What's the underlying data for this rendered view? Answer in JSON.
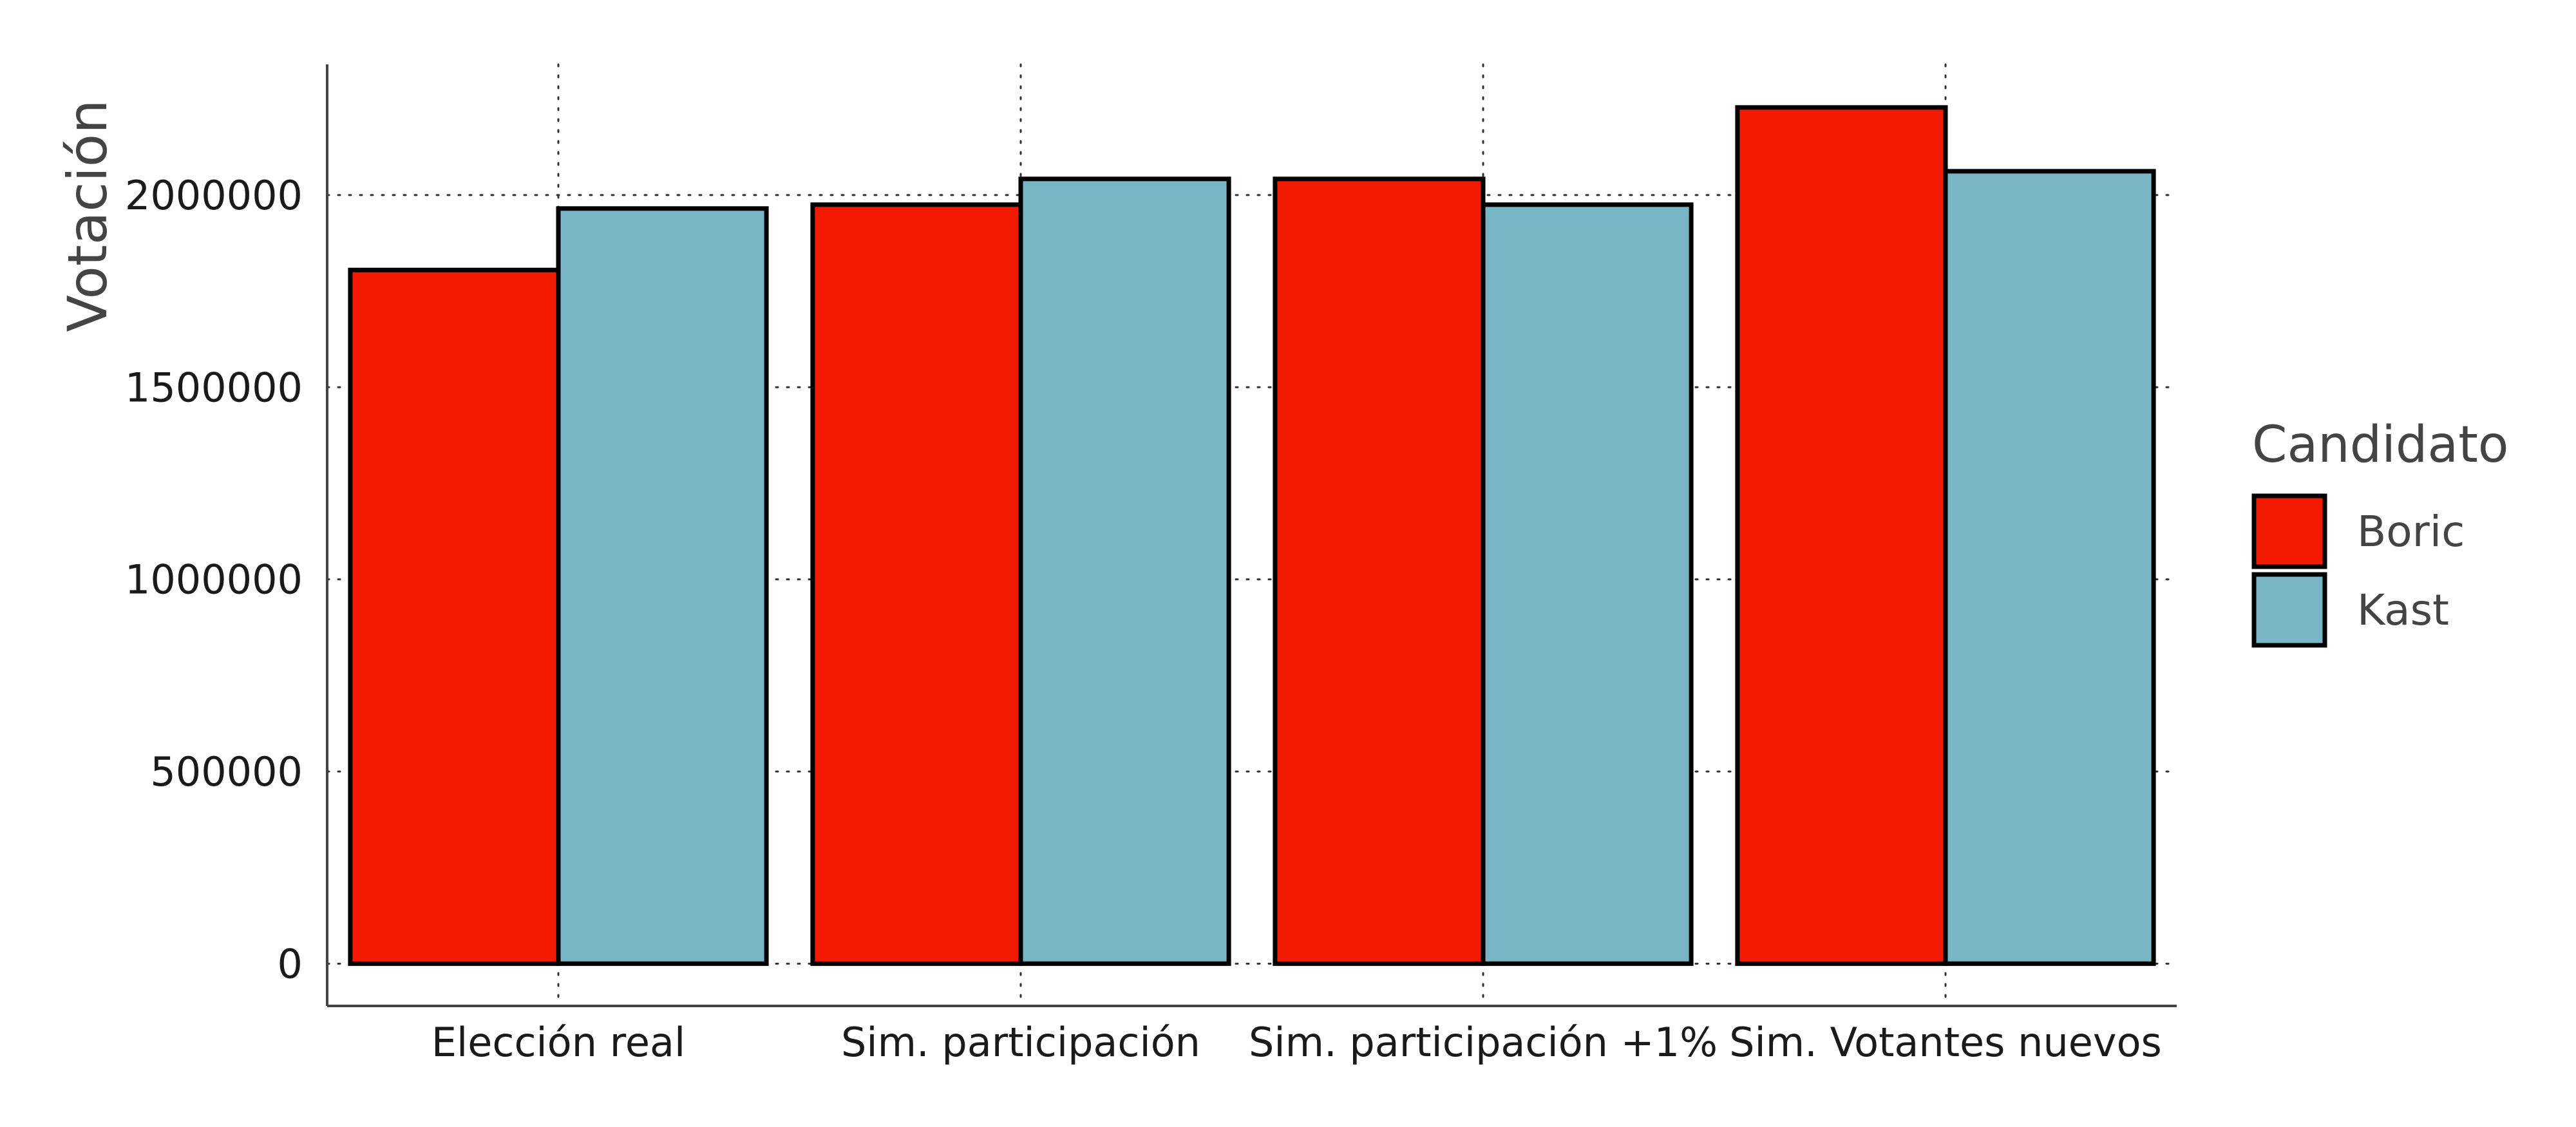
{
  "chart_data": {
    "type": "bar",
    "ylabel": "Votación",
    "xlabel": "",
    "categories": [
      "Elección real",
      "Sim. participación",
      "Sim. participación +1%",
      "Sim. Votantes nuevos"
    ],
    "series": [
      {
        "name": "Boric",
        "values": [
          1805000,
          1975000,
          2042000,
          2228000
        ]
      },
      {
        "name": "Kast",
        "values": [
          1965000,
          2042000,
          1975000,
          2062000
        ]
      }
    ],
    "ylim": [
      -110000,
      2340000
    ],
    "yticks": [
      0,
      500000,
      1000000,
      1500000,
      2000000
    ],
    "ytick_labels": [
      "0",
      "500000",
      "1000000",
      "1500000",
      "2000000"
    ],
    "grid": "dotted, x and y",
    "legend": {
      "title": "Candidato",
      "placement": "right"
    },
    "colors": {
      "Boric": "#f21b01",
      "Kast": "#78b5c5",
      "outline": "#000000",
      "axis": "#444444",
      "grid": "#333333"
    }
  }
}
